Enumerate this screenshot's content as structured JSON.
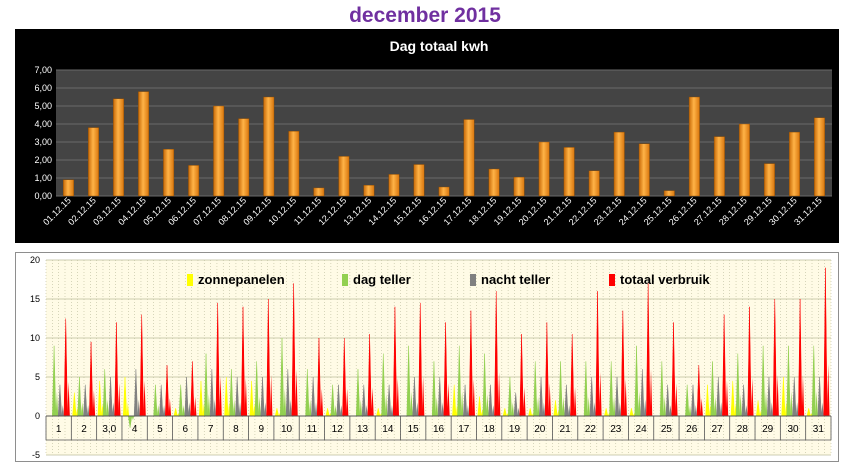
{
  "page_title": "december 2015",
  "chart_data": [
    {
      "type": "bar",
      "title": "Dag totaal kwh",
      "categories": [
        "01.12.15",
        "02.12.15",
        "03.12.15",
        "04.12.15",
        "05.12.15",
        "06.12.15",
        "07.12.15",
        "08.12.15",
        "09.12.15",
        "10.12.15",
        "11.12.15",
        "12.12.15",
        "13.12.15",
        "14.12.15",
        "15.12.15",
        "16.12.15",
        "17.12.15",
        "18.12.15",
        "19.12.15",
        "20.12.15",
        "21.12.15",
        "22.12.15",
        "23.12.15",
        "24.12.15",
        "25.12.15",
        "26.12.15",
        "27.12.15",
        "28.12.15",
        "29.12.15",
        "30.12.15",
        "31.12.15"
      ],
      "values": [
        0.9,
        3.8,
        5.4,
        5.8,
        2.6,
        1.7,
        5.0,
        4.3,
        5.5,
        3.6,
        0.45,
        2.2,
        0.6,
        1.2,
        1.75,
        0.5,
        4.25,
        1.5,
        1.05,
        3.0,
        2.7,
        1.4,
        3.55,
        2.9,
        0.3,
        5.5,
        3.3,
        4.0,
        1.8,
        3.55,
        4.35
      ],
      "ylim": [
        0,
        7
      ],
      "yticks": [
        "0,00",
        "1,00",
        "2,00",
        "3,00",
        "4,00",
        "5,00",
        "6,00",
        "7,00"
      ],
      "grid": true,
      "colors": {
        "background": "#000000",
        "plot_area": "#444444",
        "bar": "#f0901a",
        "grid": "#6a6a6a",
        "text": "#ffffff"
      }
    },
    {
      "type": "area",
      "categories": [
        "1",
        "2",
        "3,0",
        "4",
        "5",
        "6",
        "7",
        "8",
        "9",
        "10",
        "11",
        "12",
        "13",
        "14",
        "15",
        "16",
        "17",
        "18",
        "19",
        "20",
        "21",
        "22",
        "23",
        "24",
        "25",
        "26",
        "27",
        "28",
        "29",
        "30",
        "31"
      ],
      "ylim": [
        -5,
        20
      ],
      "yticks": [
        "-5",
        "0",
        "5",
        "10",
        "15",
        "20"
      ],
      "grid": true,
      "legend_position": "top",
      "series": [
        {
          "name": "zonnepanelen",
          "color": "#ffff00",
          "values": [
            0,
            3,
            4.5,
            5,
            0,
            1,
            4.5,
            5,
            4.5,
            1,
            0,
            1,
            0,
            1,
            0,
            0,
            4,
            2.5,
            1,
            1,
            2,
            0,
            1,
            1,
            0,
            0,
            4,
            4.5,
            2,
            5,
            1
          ]
        },
        {
          "name": "dag teller",
          "color": "#92d050",
          "values": [
            9,
            5,
            6,
            -1.5,
            4,
            4,
            8,
            6,
            7,
            10,
            6,
            4,
            6,
            8,
            9,
            7,
            9,
            8,
            5,
            7,
            7,
            7,
            7,
            9,
            7,
            4,
            7,
            8,
            9,
            9,
            9
          ]
        },
        {
          "name": "nacht teller",
          "color": "#808080",
          "values": [
            4,
            4,
            5,
            6,
            4,
            5,
            6,
            5,
            5,
            6,
            5,
            4,
            4,
            4,
            5,
            5,
            4,
            4,
            3,
            5,
            4,
            5,
            5,
            6,
            4,
            4,
            5,
            4,
            5,
            5,
            5
          ]
        },
        {
          "name": "totaal verbruik",
          "color": "#ff0000",
          "values": [
            12.5,
            9.5,
            12,
            13,
            6.5,
            7,
            14.5,
            14,
            15,
            17,
            10,
            10,
            10.5,
            14,
            14.5,
            12,
            13.5,
            16,
            10.5,
            12,
            10.5,
            16,
            13.5,
            17,
            12,
            6.5,
            13,
            14,
            15,
            15,
            19
          ]
        }
      ],
      "colors": {
        "background": "#fffbe6",
        "grid": "#bcbc9c",
        "axis": "#555555",
        "text": "#000000"
      }
    }
  ]
}
